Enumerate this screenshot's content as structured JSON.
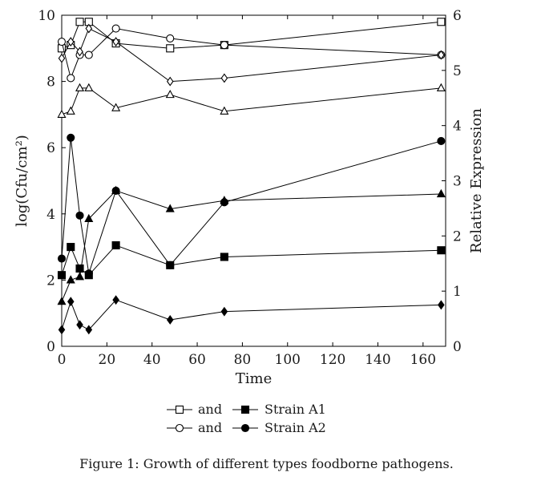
{
  "chart_data": {
    "type": "line",
    "xlabel": "Time",
    "ylabel_left": "log(Cfu/cm²)",
    "ylabel_right": "Relative Expression",
    "xlim": [
      0,
      170
    ],
    "ylim_left": [
      0,
      10
    ],
    "ylim_right": [
      0,
      6
    ],
    "x_ticks": [
      0,
      20,
      40,
      60,
      80,
      100,
      120,
      140,
      160
    ],
    "y_ticks_left": [
      0,
      2,
      4,
      6,
      8,
      10
    ],
    "y_ticks_right": [
      0,
      1,
      2,
      3,
      4,
      5,
      6
    ],
    "grid": false,
    "legend_position": "bottom",
    "legend": [
      {
        "open_label": "and",
        "filled_label": "Strain A1",
        "marker": "square"
      },
      {
        "open_label": "and",
        "filled_label": "Strain A2",
        "marker": "circle"
      }
    ],
    "series": [
      {
        "marker": "square",
        "fill": "open",
        "axis": "left",
        "x": [
          0,
          4,
          8,
          12,
          24,
          48,
          72,
          168
        ],
        "y": [
          9.0,
          9.1,
          9.8,
          9.8,
          9.15,
          9.0,
          9.1,
          9.8
        ]
      },
      {
        "marker": "circle",
        "fill": "open",
        "axis": "left",
        "x": [
          0,
          4,
          8,
          12,
          24,
          48,
          72,
          168
        ],
        "y": [
          9.2,
          8.1,
          8.8,
          8.8,
          9.6,
          9.3,
          9.1,
          8.8
        ]
      },
      {
        "marker": "diamond",
        "fill": "open",
        "axis": "left",
        "x": [
          0,
          4,
          8,
          12,
          24,
          48,
          72,
          168
        ],
        "y": [
          8.7,
          9.2,
          8.9,
          9.6,
          9.2,
          8.0,
          8.1,
          8.8
        ]
      },
      {
        "marker": "triangle",
        "fill": "open",
        "axis": "left",
        "x": [
          0,
          4,
          8,
          12,
          24,
          48,
          72,
          168
        ],
        "y": [
          7.0,
          7.1,
          7.8,
          7.8,
          7.2,
          7.6,
          7.1,
          7.8
        ]
      },
      {
        "marker": "square",
        "fill": "filled",
        "axis": "left",
        "x": [
          0,
          4,
          8,
          12,
          24,
          48,
          72,
          168
        ],
        "y": [
          2.15,
          3.0,
          2.35,
          2.15,
          3.05,
          2.45,
          2.7,
          2.9
        ]
      },
      {
        "marker": "circle",
        "fill": "filled",
        "axis": "left",
        "x": [
          0,
          4,
          8,
          12,
          24,
          48,
          72,
          168
        ],
        "y": [
          2.65,
          6.3,
          3.95,
          2.2,
          4.7,
          2.45,
          4.35,
          6.2
        ]
      },
      {
        "marker": "triangle",
        "fill": "filled",
        "axis": "left",
        "x": [
          0,
          4,
          8,
          12,
          24,
          48,
          72,
          168
        ],
        "y": [
          1.35,
          2.0,
          2.1,
          3.85,
          4.7,
          4.15,
          4.4,
          4.6
        ]
      },
      {
        "marker": "diamond",
        "fill": "filled",
        "axis": "left",
        "x": [
          0,
          4,
          8,
          12,
          24,
          48,
          72,
          168
        ],
        "y": [
          0.5,
          1.35,
          0.65,
          0.5,
          1.4,
          0.8,
          1.05,
          1.25
        ]
      }
    ]
  },
  "caption": "Figure 1: Growth of different types foodborne pathogens."
}
